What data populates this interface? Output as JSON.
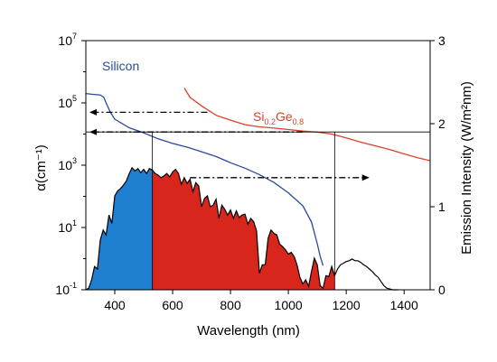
{
  "chart_data": {
    "type": "line",
    "xlabel": "Wavelength (nm)",
    "x_ticks": [
      "400",
      "600",
      "800",
      "1000",
      "1200",
      "1400"
    ],
    "x_tick_values": [
      400,
      600,
      800,
      1000,
      1200,
      1400
    ],
    "xlim": [
      300,
      1490
    ],
    "left_axis": {
      "label": "α(cm⁻¹)",
      "scale": "log",
      "ylim": [
        0.1,
        10000000
      ],
      "ticks": [
        {
          "value": 0.1,
          "base": "10",
          "exp": "-1"
        },
        {
          "value": 10,
          "base": "10",
          "exp": "1"
        },
        {
          "value": 1000,
          "base": "10",
          "exp": "3"
        },
        {
          "value": 100000,
          "base": "10",
          "exp": "5"
        },
        {
          "value": 10000000,
          "base": "10",
          "exp": "7"
        }
      ]
    },
    "right_axis": {
      "label": "Emission Intensity (W/m²nm)",
      "scale": "linear",
      "ylim": [
        0,
        3
      ],
      "ticks": [
        "0",
        "1",
        "2",
        "3"
      ],
      "tick_values": [
        0,
        1,
        2,
        3
      ]
    },
    "series": [
      {
        "name": "Silicon",
        "axis": "left",
        "color": "#2b4a9a",
        "x": [
          300,
          320,
          350,
          362,
          370,
          385,
          400,
          450,
          500,
          550,
          600,
          650,
          700,
          750,
          800,
          850,
          900,
          950,
          1000,
          1050,
          1080,
          1100,
          1110,
          1120
        ],
        "y": [
          200000,
          190000,
          180000,
          150000,
          100000,
          50000,
          30000,
          16000,
          11000,
          7000,
          5000,
          3800,
          2700,
          1900,
          1200,
          800,
          500,
          280,
          130,
          50,
          15,
          3,
          1.2,
          0.6
        ]
      },
      {
        "name": "Si0.2Ge0.8",
        "name_parts": {
          "base1": "Si",
          "sub1": "0.2",
          "base2": "Ge",
          "sub2": "0.8"
        },
        "axis": "left",
        "color": "#d9412b",
        "x": [
          640,
          660,
          700,
          750,
          800,
          850,
          900,
          950,
          1000,
          1050,
          1100,
          1150,
          1200,
          1250,
          1300,
          1350,
          1400,
          1450,
          1490
        ],
        "y": [
          300000,
          150000,
          80000,
          40000,
          28000,
          20000,
          17000,
          15500,
          14000,
          12500,
          11500,
          10000,
          7500,
          5500,
          4200,
          3200,
          2300,
          1700,
          1400
        ]
      },
      {
        "name": "Emission spectrum",
        "axis": "right",
        "color": "#000000",
        "x": [
          300,
          310,
          320,
          330,
          340,
          350,
          360,
          370,
          380,
          390,
          400,
          410,
          420,
          430,
          440,
          450,
          460,
          470,
          480,
          490,
          500,
          510,
          520,
          530,
          540,
          550,
          560,
          570,
          580,
          590,
          600,
          610,
          620,
          630,
          640,
          650,
          660,
          670,
          680,
          690,
          700,
          710,
          720,
          730,
          740,
          750,
          760,
          770,
          780,
          790,
          800,
          810,
          820,
          830,
          840,
          850,
          860,
          870,
          880,
          890,
          900,
          910,
          920,
          930,
          940,
          950,
          960,
          970,
          980,
          990,
          1000,
          1010,
          1020,
          1030,
          1040,
          1050,
          1060,
          1070,
          1080,
          1090,
          1100,
          1110,
          1120,
          1130,
          1140,
          1150,
          1160,
          1170,
          1180,
          1190,
          1200,
          1210,
          1220,
          1230,
          1240,
          1250,
          1260,
          1270,
          1280,
          1290,
          1300,
          1310,
          1320,
          1330,
          1340,
          1350,
          1360,
          1370,
          1380
        ],
        "y": [
          0.0,
          0.02,
          0.12,
          0.28,
          0.25,
          0.6,
          0.72,
          0.66,
          0.9,
          0.8,
          1.13,
          1.19,
          1.22,
          1.26,
          1.31,
          1.4,
          1.47,
          1.43,
          1.46,
          1.41,
          1.45,
          1.4,
          1.46,
          1.44,
          1.4,
          1.38,
          1.35,
          1.37,
          1.4,
          1.36,
          1.42,
          1.45,
          1.4,
          1.27,
          1.35,
          1.28,
          1.33,
          1.18,
          1.29,
          1.25,
          1.0,
          1.1,
          1.13,
          1.0,
          1.02,
          1.09,
          0.86,
          1.02,
          0.97,
          0.9,
          0.96,
          0.86,
          0.95,
          0.87,
          0.9,
          0.91,
          0.79,
          0.86,
          0.82,
          0.71,
          0.2,
          0.3,
          0.3,
          0.62,
          0.72,
          0.68,
          0.66,
          0.55,
          0.52,
          0.48,
          0.43,
          0.45,
          0.4,
          0.3,
          0.15,
          0.07,
          0.12,
          0.04,
          0.22,
          0.38,
          0.3,
          0.05,
          0.02,
          0.17,
          0.16,
          0.28,
          0.17,
          0.25,
          0.3,
          0.32,
          0.34,
          0.35,
          0.37,
          0.35,
          0.35,
          0.33,
          0.3,
          0.28,
          0.25,
          0.22,
          0.18,
          0.15,
          0.1,
          0.05,
          0.02,
          0.01,
          0.0,
          0.0,
          0.0
        ]
      }
    ],
    "shaded_regions": [
      {
        "name": "Silicon absorption band",
        "x_range": [
          300,
          530
        ],
        "color": "#1f7fd0"
      },
      {
        "name": "SiGe absorption band",
        "x_range": [
          530,
          1160
        ],
        "color": "#d9261c"
      }
    ],
    "reference_lines": [
      {
        "type": "horizontal",
        "axis": "right",
        "y": 1.9
      },
      {
        "type": "vertical",
        "x": 530
      },
      {
        "type": "vertical",
        "x": 1160
      }
    ],
    "arrows": [
      {
        "direction": "left",
        "axis": "left",
        "y": 50000,
        "x_from": 720,
        "x_to": 300
      },
      {
        "direction": "left",
        "axis": "right",
        "y": 1.9,
        "x_from": 1050,
        "x_to": 300
      },
      {
        "direction": "right",
        "axis": "right",
        "y": 1.35,
        "x_from": 660,
        "x_to": 1280
      }
    ],
    "grid": false,
    "legend": "none"
  }
}
